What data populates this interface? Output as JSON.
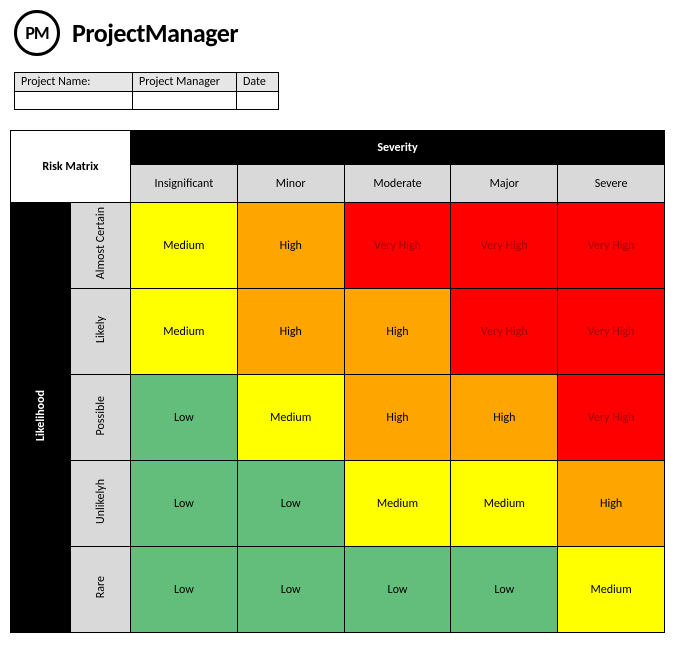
{
  "brand": {
    "logo_text": "PM",
    "name": "ProjectManager"
  },
  "meta": {
    "headers": {
      "project_name": "Project Name:",
      "project_manager": "Project Manager",
      "date": "Date"
    },
    "values": {
      "project_name": "",
      "project_manager": "",
      "date": ""
    }
  },
  "matrix": {
    "corner_label": "Risk Matrix",
    "severity_label": "Severity",
    "likelihood_label": "Likelihood",
    "severity_levels": [
      "Insignificant",
      "Minor",
      "Moderate",
      "Major",
      "Severe"
    ],
    "likelihood_levels": [
      "Almost Certain",
      "Likely",
      "Possible",
      "Unlikelyh",
      "Rare"
    ],
    "colors": {
      "low": "#63be7b",
      "medium": "#ffff00",
      "high": "#ffa500",
      "very_high": "#ff0000",
      "header_bg": "#000000",
      "header_fg": "#ffffff",
      "sub_bg": "#d9d9d9",
      "vh_text": "#9c0006"
    },
    "cells": [
      [
        {
          "label": "Medium",
          "color": "medium"
        },
        {
          "label": "High",
          "color": "high"
        },
        {
          "label": "Very High",
          "color": "very_high"
        },
        {
          "label": "Very High",
          "color": "very_high"
        },
        {
          "label": "Very High",
          "color": "very_high"
        }
      ],
      [
        {
          "label": "Medium",
          "color": "medium"
        },
        {
          "label": "High",
          "color": "high"
        },
        {
          "label": "High",
          "color": "high"
        },
        {
          "label": "Very High",
          "color": "very_high"
        },
        {
          "label": "Very High",
          "color": "very_high"
        }
      ],
      [
        {
          "label": "Low",
          "color": "low"
        },
        {
          "label": "Medium",
          "color": "medium"
        },
        {
          "label": "High",
          "color": "high"
        },
        {
          "label": "High",
          "color": "high"
        },
        {
          "label": "Very High",
          "color": "very_high"
        }
      ],
      [
        {
          "label": "Low",
          "color": "low"
        },
        {
          "label": "Low",
          "color": "low"
        },
        {
          "label": "Medium",
          "color": "medium"
        },
        {
          "label": "Medium",
          "color": "medium"
        },
        {
          "label": "High",
          "color": "high"
        }
      ],
      [
        {
          "label": "Low",
          "color": "low"
        },
        {
          "label": "Low",
          "color": "low"
        },
        {
          "label": "Low",
          "color": "low"
        },
        {
          "label": "Low",
          "color": "low"
        },
        {
          "label": "Medium",
          "color": "medium"
        }
      ]
    ]
  }
}
